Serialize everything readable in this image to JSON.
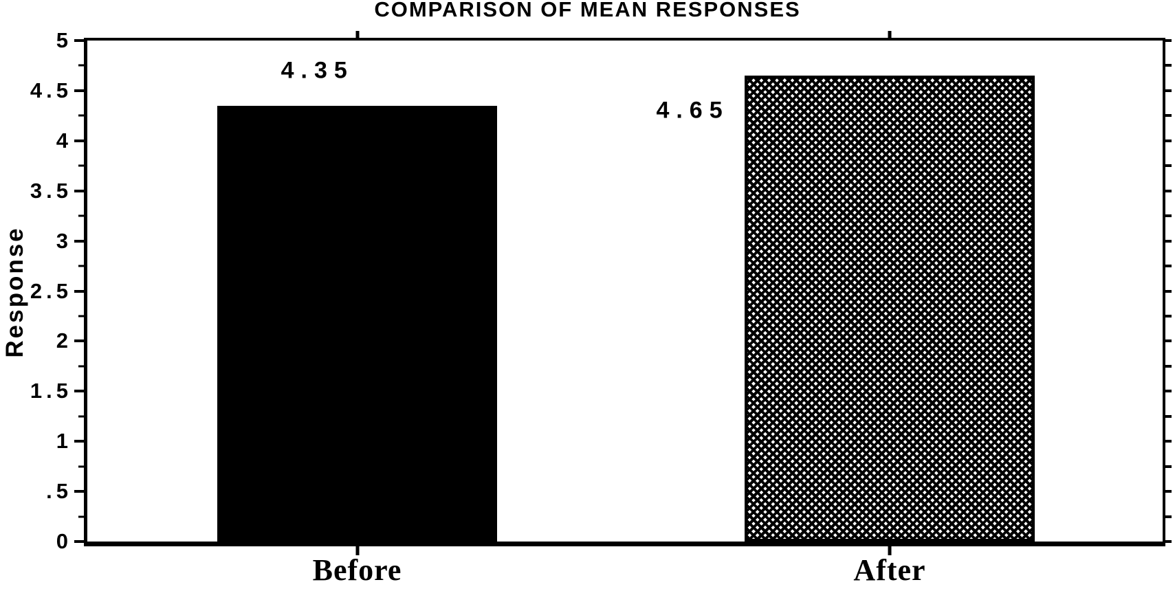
{
  "colors": {
    "foreground": "#000000",
    "background": "#ffffff"
  },
  "chart_data": {
    "type": "bar",
    "title": "COMPARISON OF MEAN RESPONSES",
    "categories": [
      "Before",
      "After"
    ],
    "values": [
      4.35,
      4.65
    ],
    "value_labels": [
      "4.35",
      "4.65"
    ],
    "bar_fills": [
      "solid-black",
      "diagonal-crosshatch"
    ],
    "xlabel": "",
    "ylabel": "Response",
    "ylim": [
      0,
      5
    ],
    "ytick_values": [
      0,
      0.5,
      1,
      1.5,
      2,
      2.5,
      3,
      3.5,
      4,
      4.5,
      5
    ],
    "ytick_labels": [
      "0",
      ".5",
      "1",
      "1.5",
      "2",
      "2.5",
      "3",
      "3.5",
      "4",
      "4.5",
      "5"
    ],
    "minor_ytick_interval": 0.25,
    "grid": false,
    "legend": "none",
    "frame": "full-box",
    "tick_style": "outward"
  }
}
